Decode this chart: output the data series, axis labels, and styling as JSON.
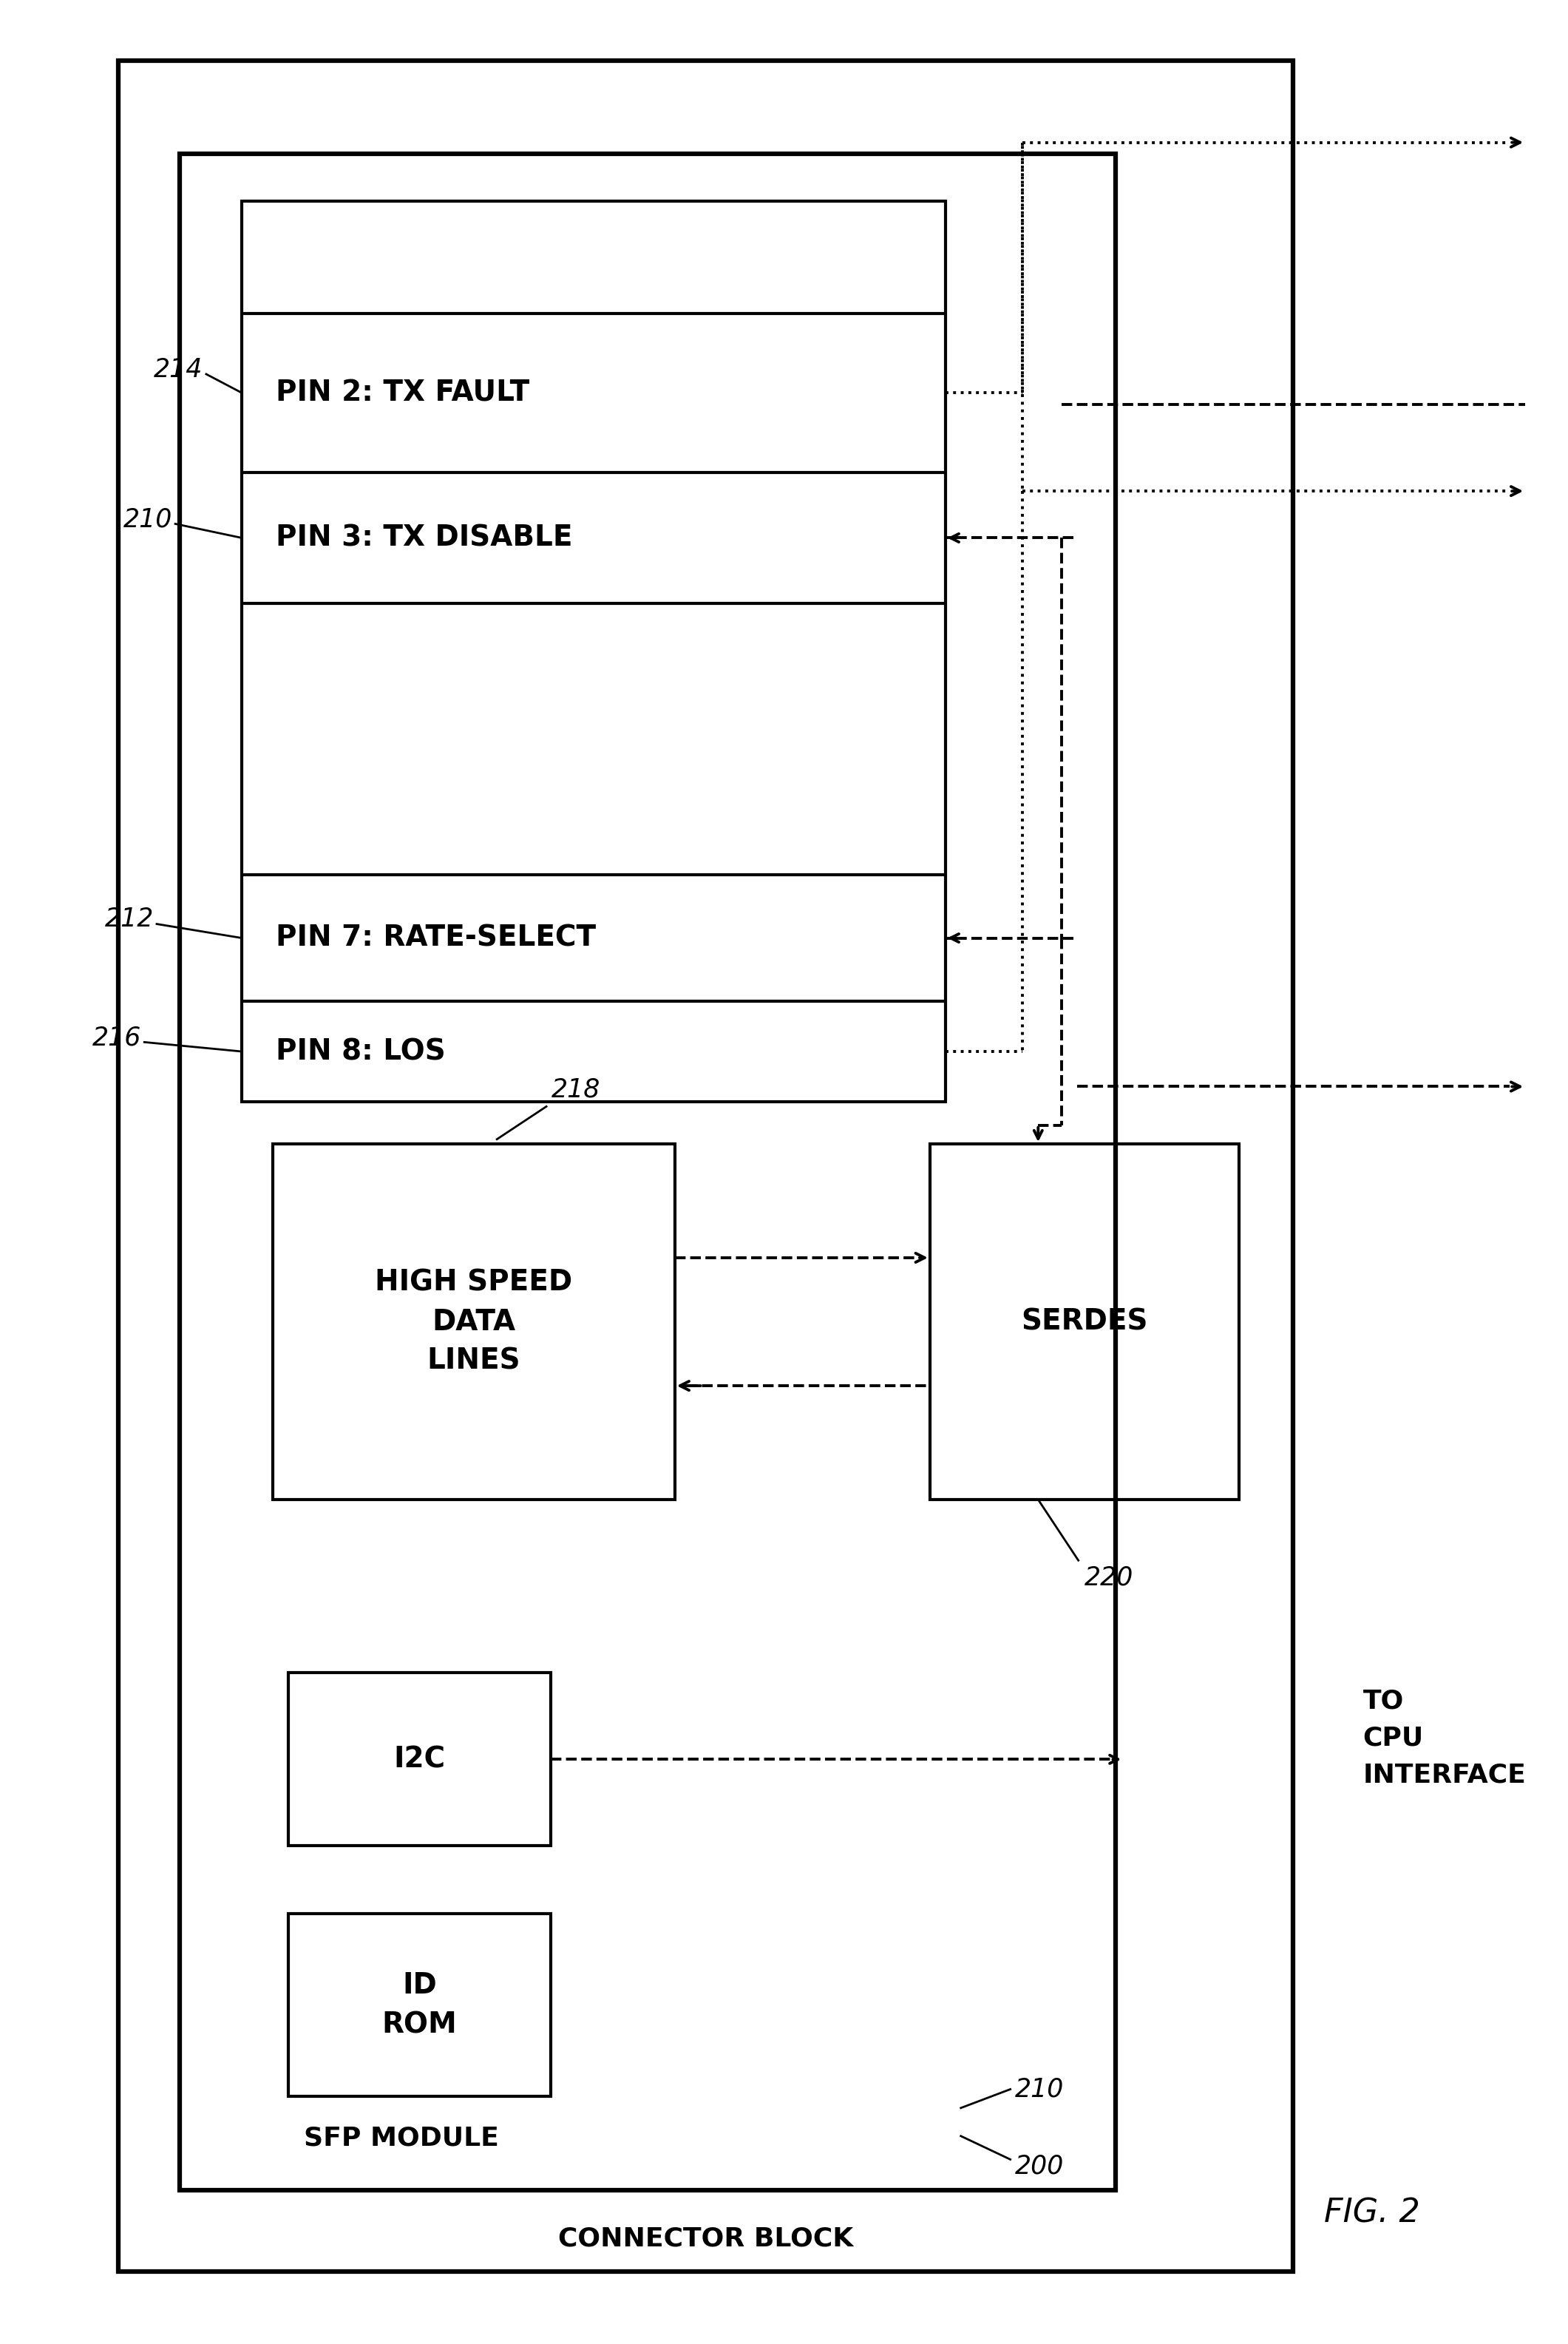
{
  "bg_color": "#ffffff",
  "lc": "#000000",
  "fig_width": 21.21,
  "fig_height": 31.7,
  "labels": {
    "pin2": "PIN 2: TX FAULT",
    "pin3": "PIN 3: TX DISABLE",
    "pin7": "PIN 7: RATE-SELECT",
    "pin8": "PIN 8: LOS",
    "high_speed": "HIGH SPEED\nDATA\nLINES",
    "i2c": "I2C",
    "id_rom": "ID\nROM",
    "serdes": "SERDES",
    "sfp_module": "SFP MODULE",
    "connector_block": "CONNECTOR BLOCK",
    "to_cpu": "TO\nCPU\nINTERFACE",
    "fig": "FIG. 2",
    "r214": "214",
    "r210a": "210",
    "r212": "212",
    "r216": "216",
    "r218": "218",
    "r220": "220",
    "r200": "200",
    "r210b": "210"
  },
  "lw_outer": 4.5,
  "lw_inner": 3.0,
  "lw_signal": 2.8,
  "lw_leader": 2.0,
  "fs_pin": 28,
  "fs_block": 26,
  "fs_label": 26,
  "fs_ref": 25,
  "fs_fig": 32
}
